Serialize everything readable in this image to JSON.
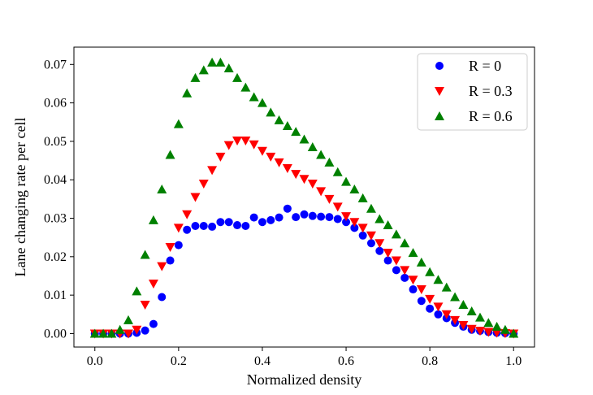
{
  "chart_data": {
    "type": "scatter",
    "title": "",
    "xlabel": "Normalized density",
    "ylabel": "Lane changing rate per cell",
    "xlim": [
      -0.05,
      1.05
    ],
    "ylim": [
      -0.0035,
      0.0745
    ],
    "xticks": [
      0.0,
      0.2,
      0.4,
      0.6,
      0.8,
      1.0
    ],
    "xtick_labels": [
      "0.0",
      "0.2",
      "0.4",
      "0.6",
      "0.8",
      "1.0"
    ],
    "yticks": [
      0.0,
      0.01,
      0.02,
      0.03,
      0.04,
      0.05,
      0.06,
      0.07
    ],
    "ytick_labels": [
      "0.00",
      "0.01",
      "0.02",
      "0.03",
      "0.04",
      "0.05",
      "0.06",
      "0.07"
    ],
    "grid": false,
    "legend_position": "top-right",
    "x": [
      0.0,
      0.02,
      0.04,
      0.06,
      0.08,
      0.1,
      0.12,
      0.14,
      0.16,
      0.18,
      0.2,
      0.22,
      0.24,
      0.26,
      0.28,
      0.3,
      0.32,
      0.34,
      0.36,
      0.38,
      0.4,
      0.42,
      0.44,
      0.46,
      0.48,
      0.5,
      0.52,
      0.54,
      0.56,
      0.58,
      0.6,
      0.62,
      0.64,
      0.66,
      0.68,
      0.7,
      0.72,
      0.74,
      0.76,
      0.78,
      0.8,
      0.82,
      0.84,
      0.86,
      0.88,
      0.9,
      0.92,
      0.94,
      0.96,
      0.98,
      1.0
    ],
    "series": [
      {
        "name": "R = 0",
        "marker": "circle",
        "color": "#0000ff",
        "values": [
          0.0,
          0.0,
          0.0,
          0.0,
          0.0,
          0.0002,
          0.0008,
          0.0025,
          0.0095,
          0.019,
          0.023,
          0.027,
          0.028,
          0.028,
          0.0278,
          0.029,
          0.029,
          0.0282,
          0.028,
          0.0302,
          0.029,
          0.0295,
          0.0302,
          0.0325,
          0.0303,
          0.031,
          0.0306,
          0.0304,
          0.0303,
          0.0298,
          0.029,
          0.0275,
          0.0255,
          0.0235,
          0.0215,
          0.019,
          0.0165,
          0.0145,
          0.0115,
          0.0085,
          0.0065,
          0.005,
          0.004,
          0.0028,
          0.0018,
          0.001,
          0.0007,
          0.0004,
          0.0002,
          0.0001,
          0.0
        ]
      },
      {
        "name": "R = 0.3",
        "marker": "triangle-down",
        "color": "#ff0000",
        "values": [
          0.0,
          0.0,
          0.0,
          0.0,
          0.0,
          0.001,
          0.0075,
          0.013,
          0.0175,
          0.0225,
          0.0275,
          0.031,
          0.0355,
          0.039,
          0.0425,
          0.046,
          0.049,
          0.0502,
          0.0502,
          0.0492,
          0.0475,
          0.046,
          0.0445,
          0.043,
          0.0415,
          0.0402,
          0.039,
          0.037,
          0.035,
          0.033,
          0.0305,
          0.029,
          0.0275,
          0.0255,
          0.0235,
          0.021,
          0.019,
          0.0165,
          0.014,
          0.0115,
          0.009,
          0.007,
          0.005,
          0.0035,
          0.0022,
          0.0012,
          0.0007,
          0.0004,
          0.0002,
          0.0001,
          0.0
        ]
      },
      {
        "name": "R = 0.6",
        "marker": "triangle-up",
        "color": "#008000",
        "values": [
          0.0,
          0.0,
          0.0,
          0.001,
          0.0035,
          0.011,
          0.0205,
          0.0295,
          0.0375,
          0.0465,
          0.0545,
          0.0625,
          0.0665,
          0.0685,
          0.0705,
          0.0705,
          0.069,
          0.0665,
          0.064,
          0.0615,
          0.06,
          0.0575,
          0.0555,
          0.054,
          0.0525,
          0.0505,
          0.0485,
          0.0465,
          0.0445,
          0.042,
          0.0395,
          0.0375,
          0.0352,
          0.0325,
          0.0298,
          0.0282,
          0.0258,
          0.0235,
          0.021,
          0.0185,
          0.016,
          0.014,
          0.012,
          0.0095,
          0.0075,
          0.0058,
          0.0042,
          0.0028,
          0.0018,
          0.001,
          0.0
        ]
      }
    ]
  }
}
